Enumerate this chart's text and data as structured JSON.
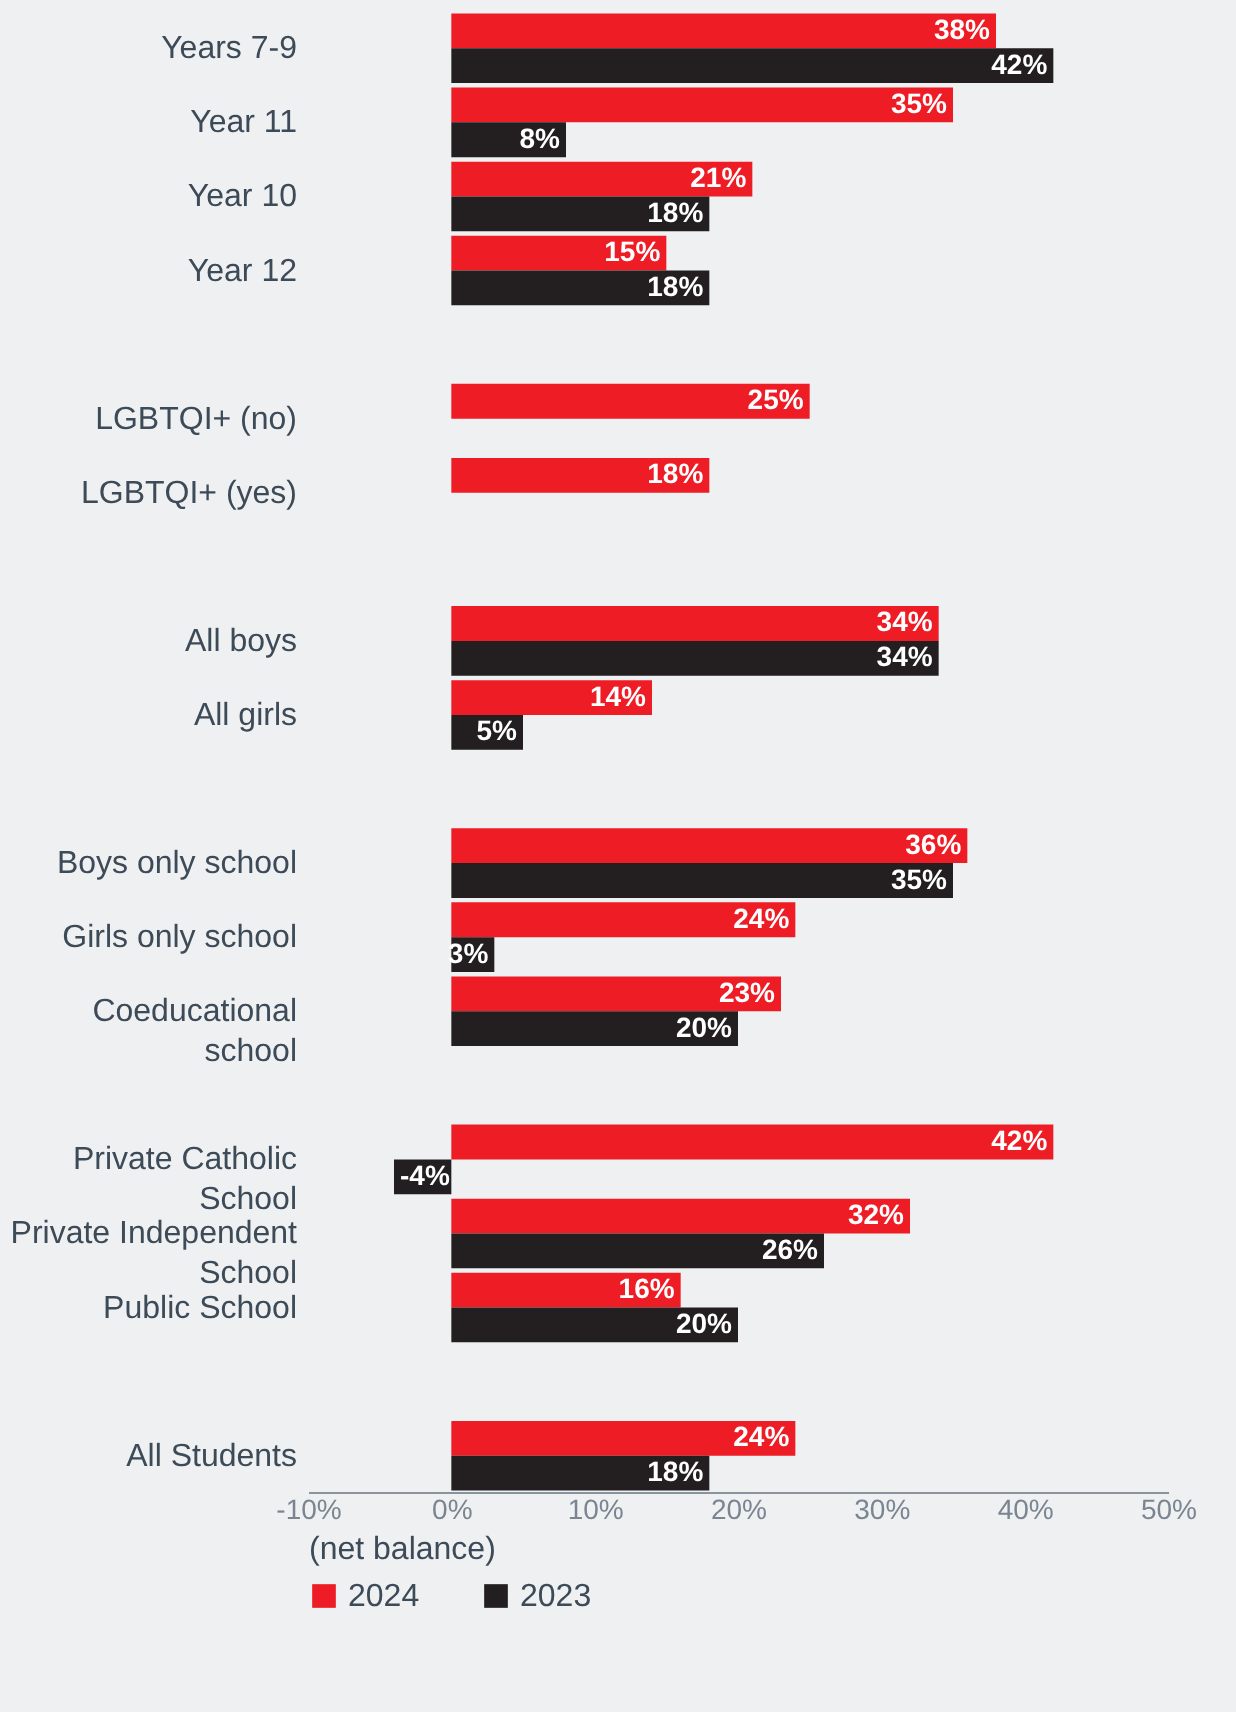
{
  "chart_data": {
    "type": "bar",
    "orientation": "horizontal",
    "xlabel": "(net balance)",
    "categories": [
      "Years 7-9",
      "Year 11",
      "Year 10",
      "Year 12",
      null,
      "LGBTQI+ (no)",
      "LGBTQI+ (yes)",
      null,
      "All boys",
      "All girls",
      null,
      "Boys only school",
      "Girls only school",
      "Coeducational school",
      null,
      "Private Catholic School",
      "Private Independent School",
      "Public School",
      null,
      "All Students"
    ],
    "series": [
      {
        "name": "2024",
        "color": "#ee1c25",
        "values": [
          38,
          35,
          21,
          15,
          null,
          25,
          18,
          null,
          34,
          14,
          null,
          36,
          24,
          23,
          null,
          42,
          32,
          16,
          null,
          24
        ],
        "value_labels": [
          "38%",
          "35%",
          "21%",
          "15%",
          null,
          "25%",
          "18%",
          null,
          "34%",
          "14%",
          null,
          "36%",
          "24%",
          "23%",
          null,
          "42%",
          "32%",
          "16%",
          null,
          "24%"
        ]
      },
      {
        "name": "2023",
        "color": "#231f20",
        "values": [
          42,
          8,
          18,
          18,
          null,
          null,
          null,
          null,
          34,
          5,
          null,
          35,
          3,
          20,
          null,
          -4,
          26,
          20,
          null,
          18
        ],
        "value_labels": [
          "42%",
          "8%",
          "18%",
          "18%",
          null,
          null,
          null,
          null,
          "34%",
          "5%",
          null,
          "35%",
          "3%",
          "20%",
          null,
          "-4%",
          "26%",
          "20%",
          null,
          "18%"
        ]
      }
    ],
    "xlim": [
      -10,
      50
    ],
    "xticks": [
      {
        "value": -10,
        "label": "-10%"
      },
      {
        "value": 0,
        "label": "0%"
      },
      {
        "value": 10,
        "label": "10%"
      },
      {
        "value": 20,
        "label": "20%"
      },
      {
        "value": 30,
        "label": "30%"
      },
      {
        "value": 40,
        "label": "40%"
      },
      {
        "value": 50,
        "label": "50%"
      }
    ],
    "grid": false,
    "legend": "bottom"
  }
}
